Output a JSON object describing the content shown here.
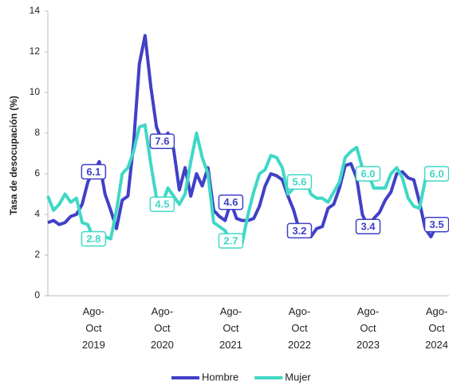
{
  "chart_data": {
    "type": "line",
    "ylabel": "Tasa de desocupación (%)",
    "categories": [
      null,
      null,
      null,
      null,
      null,
      null,
      null,
      null,
      "Ago-Oct 2019",
      null,
      null,
      null,
      null,
      null,
      null,
      null,
      null,
      null,
      null,
      null,
      "Ago-Oct 2020",
      null,
      null,
      null,
      null,
      null,
      null,
      null,
      null,
      null,
      null,
      null,
      "Ago-Oct 2021",
      null,
      null,
      null,
      null,
      null,
      null,
      null,
      null,
      null,
      null,
      null,
      "Ago-Oct 2022",
      null,
      null,
      null,
      null,
      null,
      null,
      null,
      null,
      null,
      null,
      null,
      "Ago-Oct 2023",
      null,
      null,
      null,
      null,
      null,
      null,
      null,
      null,
      null,
      null,
      null,
      "Ago-Oct 2024"
    ],
    "series": [
      {
        "name": "Hombre",
        "color": "#4040c8",
        "values": [
          3.6,
          3.7,
          3.5,
          3.6,
          3.9,
          4.0,
          4.5,
          5.6,
          6.1,
          6.6,
          5.0,
          4.2,
          3.3,
          4.7,
          4.9,
          7.5,
          11.4,
          12.8,
          10.3,
          8.3,
          7.6,
          8.0,
          7.2,
          5.2,
          6.3,
          4.9,
          6.0,
          5.4,
          6.3,
          4.2,
          3.9,
          3.7,
          4.6,
          3.8,
          3.7,
          3.7,
          3.8,
          4.4,
          5.4,
          6.0,
          5.9,
          5.7,
          4.9,
          4.2,
          3.2,
          3.4,
          2.9,
          3.3,
          3.4,
          4.3,
          4.5,
          5.3,
          6.4,
          6.5,
          5.8,
          4.0,
          3.4,
          3.8,
          4.1,
          4.7,
          5.1,
          6.0,
          6.1,
          5.8,
          5.7,
          4.6,
          3.3,
          2.9,
          3.5
        ],
        "value_labels": [
          null,
          null,
          null,
          null,
          null,
          null,
          null,
          null,
          "6.1",
          null,
          null,
          null,
          null,
          null,
          null,
          null,
          null,
          null,
          null,
          null,
          "7.6",
          null,
          null,
          null,
          null,
          null,
          null,
          null,
          null,
          null,
          null,
          null,
          "4.6",
          null,
          null,
          null,
          null,
          null,
          null,
          null,
          null,
          null,
          null,
          null,
          "3.2",
          null,
          null,
          null,
          null,
          null,
          null,
          null,
          null,
          null,
          null,
          null,
          "3.4",
          null,
          null,
          null,
          null,
          null,
          null,
          null,
          null,
          null,
          null,
          null,
          "3.5"
        ]
      },
      {
        "name": "Mujer",
        "color": "#3fd8c6",
        "values": [
          4.9,
          4.2,
          4.5,
          5.0,
          4.6,
          4.8,
          3.6,
          3.5,
          2.8,
          2.8,
          2.9,
          2.8,
          4.2,
          6.0,
          6.3,
          7.1,
          8.3,
          8.4,
          6.5,
          4.8,
          4.5,
          5.3,
          4.9,
          4.5,
          5.0,
          6.6,
          8.0,
          6.8,
          6.0,
          3.6,
          3.4,
          3.2,
          2.7,
          2.7,
          2.6,
          4.0,
          5.1,
          6.0,
          6.2,
          6.9,
          6.8,
          6.3,
          5.0,
          5.3,
          5.6,
          5.8,
          5.0,
          4.8,
          4.8,
          4.6,
          5.1,
          5.6,
          6.8,
          7.1,
          7.3,
          6.3,
          6.0,
          5.3,
          5.3,
          5.3,
          6.0,
          6.3,
          5.8,
          4.8,
          4.4,
          4.3,
          5.7,
          6.2,
          6.0
        ],
        "value_labels": [
          null,
          null,
          null,
          null,
          null,
          null,
          null,
          null,
          "2.8",
          null,
          null,
          null,
          null,
          null,
          null,
          null,
          null,
          null,
          null,
          null,
          "4.5",
          null,
          null,
          null,
          null,
          null,
          null,
          null,
          null,
          null,
          null,
          null,
          "2.7",
          null,
          null,
          null,
          null,
          null,
          null,
          null,
          null,
          null,
          null,
          null,
          "5.6",
          null,
          null,
          null,
          null,
          null,
          null,
          null,
          null,
          null,
          null,
          null,
          "6.0",
          null,
          null,
          null,
          null,
          null,
          null,
          null,
          null,
          null,
          null,
          null,
          "6.0"
        ]
      }
    ],
    "ylim": [
      0,
      14
    ],
    "yticks": [
      0,
      2,
      4,
      6,
      8,
      10,
      12,
      14
    ],
    "grid": false,
    "legend": "bottom"
  }
}
